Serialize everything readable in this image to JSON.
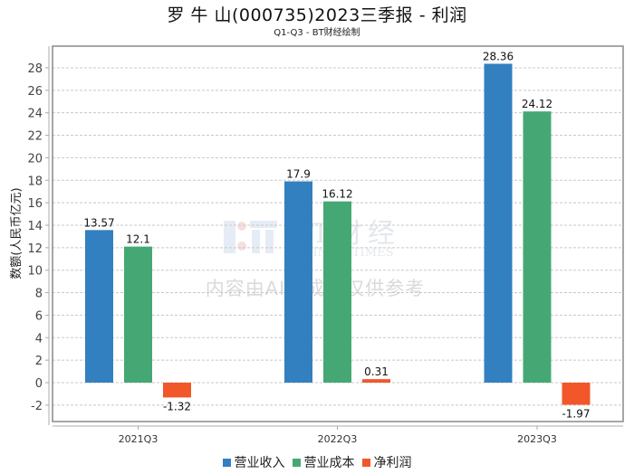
{
  "header": {
    "title": "罗 牛 山(000735)2023三季报 - 利润",
    "subtitle": "Q1-Q3 - BT财经绘制"
  },
  "watermark": {
    "logo_text": "BT财经",
    "logo_sub": "BUSINESSTIMES",
    "notice": "内容由AI生成，仅供参考"
  },
  "chart_data": {
    "type": "bar",
    "title": "罗 牛 山(000735)2023三季报 - 利润",
    "subtitle": "Q1-Q3 - BT财经绘制",
    "xlabel": "",
    "ylabel": "数额(人民币亿元)",
    "categories": [
      "2021Q3",
      "2022Q3",
      "2023Q3"
    ],
    "series": [
      {
        "name": "营业收入",
        "color": "#3380c0",
        "values": [
          13.57,
          17.9,
          28.36
        ],
        "labels": [
          "13.57",
          "17.9",
          "28.36"
        ]
      },
      {
        "name": "营业成本",
        "color": "#45a874",
        "values": [
          12.1,
          16.12,
          24.12
        ],
        "labels": [
          "12.1",
          "16.12",
          "24.12"
        ]
      },
      {
        "name": "净利润",
        "color": "#f2572a",
        "values": [
          -1.32,
          0.31,
          -1.97
        ],
        "labels": [
          "-1.32",
          "0.31",
          "-1.97"
        ]
      }
    ],
    "ylim": [
      -2.6,
      29.8
    ],
    "yticks": [
      -2,
      0,
      2,
      4,
      6,
      8,
      10,
      12,
      14,
      16,
      18,
      20,
      22,
      24,
      26,
      28
    ],
    "ytick_labels": [
      "-2",
      "0",
      "2",
      "4",
      "6",
      "8",
      "10",
      "12",
      "14",
      "16",
      "18",
      "20",
      "22",
      "24",
      "26",
      "28"
    ],
    "grid": true,
    "legend_position": "bottom-center"
  }
}
